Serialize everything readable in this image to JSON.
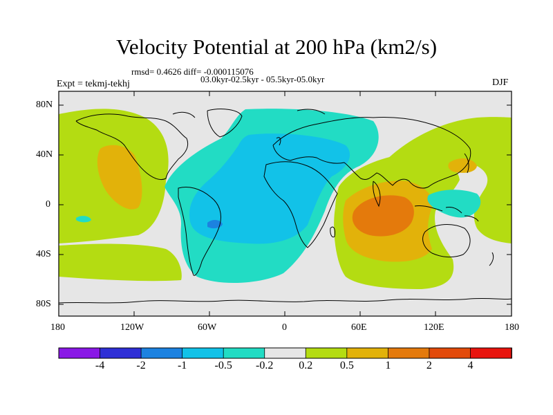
{
  "title": "Velocity Potential at 200 hPa (km2/s)",
  "stats_line": "rmsd= 0.4626 diff= -0.000115076",
  "period_line": "03.0kyr-02.5kyr - 05.5kyr-05.0kyr",
  "experiment": "Expt = tekmj-tekhj",
  "season": "DJF",
  "axes": {
    "lat_labels": [
      "80N",
      "40N",
      "0",
      "40S",
      "80S"
    ],
    "lon_labels": [
      "180",
      "120W",
      "60W",
      "0",
      "60E",
      "120E",
      "180"
    ]
  },
  "colorbar": {
    "labels": [
      "-4",
      "-2",
      "-1",
      "-0.5",
      "-0.2",
      "0.2",
      "0.5",
      "1",
      "2",
      "4"
    ],
    "colors": [
      "#8a18e6",
      "#2f2fd6",
      "#1c82e0",
      "#12c2e8",
      "#22dcc4",
      "#e6e6e6",
      "#b4dc12",
      "#e2b20a",
      "#e47a0c",
      "#e24a0a",
      "#e8140e"
    ]
  },
  "colors": {
    "background": "#ffffff",
    "neutral": "#e6e6e6",
    "coast": "#000000"
  }
}
